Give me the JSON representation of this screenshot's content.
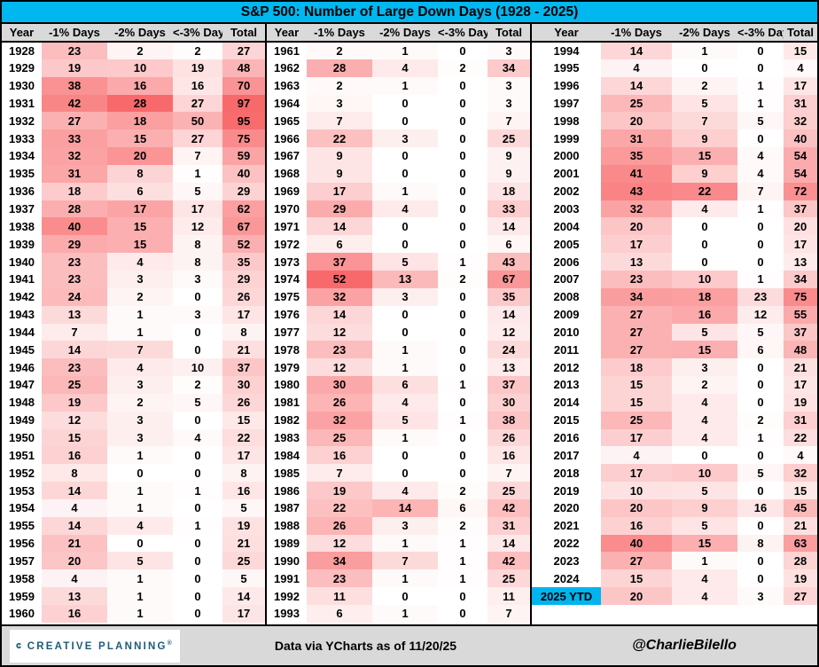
{
  "chart_data": {
    "type": "heatmap-table",
    "title": "S&P 500: Number of Large Down Days (1928 - 2025)",
    "columns": [
      "Year",
      "-1% Days",
      "-2% Days",
      "<-3% Days",
      "Total"
    ],
    "highlight_year": "2025 YTD",
    "heat": {
      "min_color": "#FFFFFF",
      "max_color": "#F8696B",
      "column_scale_max": [
        52,
        28,
        97,
        97
      ]
    },
    "groups": [
      {
        "rows": [
          [
            "1928",
            23,
            2,
            2,
            27
          ],
          [
            "1929",
            19,
            10,
            19,
            48
          ],
          [
            "1930",
            38,
            16,
            16,
            70
          ],
          [
            "1931",
            42,
            28,
            27,
            97
          ],
          [
            "1932",
            27,
            18,
            50,
            95
          ],
          [
            "1933",
            33,
            15,
            27,
            75
          ],
          [
            "1934",
            32,
            20,
            7,
            59
          ],
          [
            "1935",
            31,
            8,
            1,
            40
          ],
          [
            "1936",
            18,
            6,
            5,
            29
          ],
          [
            "1937",
            28,
            17,
            17,
            62
          ],
          [
            "1938",
            40,
            15,
            12,
            67
          ],
          [
            "1939",
            29,
            15,
            8,
            52
          ],
          [
            "1940",
            23,
            4,
            8,
            35
          ],
          [
            "1941",
            23,
            3,
            3,
            29
          ],
          [
            "1942",
            24,
            2,
            0,
            26
          ],
          [
            "1943",
            13,
            1,
            3,
            17
          ],
          [
            "1944",
            7,
            1,
            0,
            8
          ],
          [
            "1945",
            14,
            7,
            0,
            21
          ],
          [
            "1946",
            23,
            4,
            10,
            37
          ],
          [
            "1947",
            25,
            3,
            2,
            30
          ],
          [
            "1948",
            19,
            2,
            5,
            26
          ],
          [
            "1949",
            12,
            3,
            0,
            15
          ],
          [
            "1950",
            15,
            3,
            4,
            22
          ],
          [
            "1951",
            16,
            1,
            0,
            17
          ],
          [
            "1952",
            8,
            0,
            0,
            8
          ],
          [
            "1953",
            14,
            1,
            1,
            16
          ],
          [
            "1954",
            4,
            1,
            0,
            5
          ],
          [
            "1955",
            14,
            4,
            1,
            19
          ],
          [
            "1956",
            21,
            0,
            0,
            21
          ],
          [
            "1957",
            20,
            5,
            0,
            25
          ],
          [
            "1958",
            4,
            1,
            0,
            5
          ],
          [
            "1959",
            13,
            1,
            0,
            14
          ],
          [
            "1960",
            16,
            1,
            0,
            17
          ]
        ]
      },
      {
        "rows": [
          [
            "1961",
            2,
            1,
            0,
            3
          ],
          [
            "1962",
            28,
            4,
            2,
            34
          ],
          [
            "1963",
            2,
            1,
            0,
            3
          ],
          [
            "1964",
            3,
            0,
            0,
            3
          ],
          [
            "1965",
            7,
            0,
            0,
            7
          ],
          [
            "1966",
            22,
            3,
            0,
            25
          ],
          [
            "1967",
            9,
            0,
            0,
            9
          ],
          [
            "1968",
            9,
            0,
            0,
            9
          ],
          [
            "1969",
            17,
            1,
            0,
            18
          ],
          [
            "1970",
            29,
            4,
            0,
            33
          ],
          [
            "1971",
            14,
            0,
            0,
            14
          ],
          [
            "1972",
            6,
            0,
            0,
            6
          ],
          [
            "1973",
            37,
            5,
            1,
            43
          ],
          [
            "1974",
            52,
            13,
            2,
            67
          ],
          [
            "1975",
            32,
            3,
            0,
            35
          ],
          [
            "1976",
            14,
            0,
            0,
            14
          ],
          [
            "1977",
            12,
            0,
            0,
            12
          ],
          [
            "1978",
            23,
            1,
            0,
            24
          ],
          [
            "1979",
            12,
            1,
            0,
            13
          ],
          [
            "1980",
            30,
            6,
            1,
            37
          ],
          [
            "1981",
            26,
            4,
            0,
            30
          ],
          [
            "1982",
            32,
            5,
            1,
            38
          ],
          [
            "1983",
            25,
            1,
            0,
            26
          ],
          [
            "1984",
            16,
            0,
            0,
            16
          ],
          [
            "1985",
            7,
            0,
            0,
            7
          ],
          [
            "1986",
            19,
            4,
            2,
            25
          ],
          [
            "1987",
            22,
            14,
            6,
            42
          ],
          [
            "1988",
            26,
            3,
            2,
            31
          ],
          [
            "1989",
            12,
            1,
            1,
            14
          ],
          [
            "1990",
            34,
            7,
            1,
            42
          ],
          [
            "1991",
            23,
            1,
            1,
            25
          ],
          [
            "1992",
            11,
            0,
            0,
            11
          ],
          [
            "1993",
            6,
            1,
            0,
            7
          ]
        ]
      },
      {
        "rows": [
          [
            "1994",
            14,
            1,
            0,
            15
          ],
          [
            "1995",
            4,
            0,
            0,
            4
          ],
          [
            "1996",
            14,
            2,
            1,
            17
          ],
          [
            "1997",
            25,
            5,
            1,
            31
          ],
          [
            "1998",
            20,
            7,
            5,
            32
          ],
          [
            "1999",
            31,
            9,
            0,
            40
          ],
          [
            "2000",
            35,
            15,
            4,
            54
          ],
          [
            "2001",
            41,
            9,
            4,
            54
          ],
          [
            "2002",
            43,
            22,
            7,
            72
          ],
          [
            "2003",
            32,
            4,
            1,
            37
          ],
          [
            "2004",
            20,
            0,
            0,
            20
          ],
          [
            "2005",
            17,
            0,
            0,
            17
          ],
          [
            "2006",
            13,
            0,
            0,
            13
          ],
          [
            "2007",
            23,
            10,
            1,
            34
          ],
          [
            "2008",
            34,
            18,
            23,
            75
          ],
          [
            "2009",
            27,
            16,
            12,
            55
          ],
          [
            "2010",
            27,
            5,
            5,
            37
          ],
          [
            "2011",
            27,
            15,
            6,
            48
          ],
          [
            "2012",
            18,
            3,
            0,
            21
          ],
          [
            "2013",
            15,
            2,
            0,
            17
          ],
          [
            "2014",
            15,
            4,
            0,
            19
          ],
          [
            "2015",
            25,
            4,
            2,
            31
          ],
          [
            "2016",
            17,
            4,
            1,
            22
          ],
          [
            "2017",
            4,
            0,
            0,
            4
          ],
          [
            "2018",
            17,
            10,
            5,
            32
          ],
          [
            "2019",
            10,
            5,
            0,
            15
          ],
          [
            "2020",
            20,
            9,
            16,
            45
          ],
          [
            "2021",
            16,
            5,
            0,
            21
          ],
          [
            "2022",
            40,
            15,
            8,
            63
          ],
          [
            "2023",
            27,
            1,
            0,
            28
          ],
          [
            "2024",
            15,
            4,
            0,
            19
          ],
          [
            "2025 YTD",
            20,
            4,
            3,
            27
          ]
        ]
      }
    ]
  },
  "footer": {
    "brand": "CREATIVE PLANNING",
    "brand_mark": "®",
    "center_text": "Data via YCharts as of 11/20/25",
    "handle": "@CharlieBilello"
  },
  "colors": {
    "title_bg": "#00B7F0",
    "highlight_bg": "#00B4EE",
    "header_bg": "#D9D9D9",
    "footer_bg": "#D9D9D9",
    "border": "#000000",
    "brand_navy": "#1E5B7A",
    "brand_gold": "#C9A86A"
  }
}
